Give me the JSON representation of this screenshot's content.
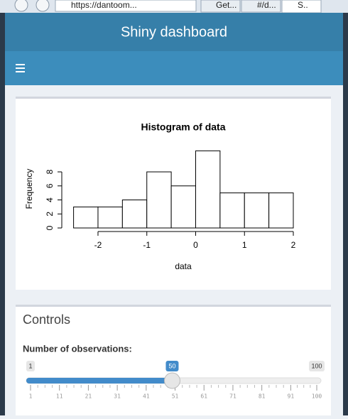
{
  "browser": {
    "address": "https://dantoom...",
    "tabs": [
      "Get...",
      "#/d...",
      "S.."
    ]
  },
  "header": {
    "title": "Shiny dashboard"
  },
  "plot": {
    "type": "histogram",
    "title": "Histogram of data",
    "xlabel": "data",
    "ylabel": "Frequency",
    "bins": [
      -2.5,
      -2,
      -1.5,
      -1,
      -0.5,
      0,
      0.5,
      1,
      1.5,
      2
    ],
    "counts": [
      3,
      3,
      4,
      8,
      6,
      11,
      5,
      5,
      5
    ],
    "xlim": [
      -2.5,
      2
    ],
    "ylim": [
      0,
      11
    ],
    "xticks": [
      -2,
      -1,
      0,
      1,
      2
    ],
    "yticks": [
      0,
      2,
      4,
      6,
      8
    ]
  },
  "controls": {
    "title": "Controls",
    "label": "Number of observations:",
    "slider": {
      "min": 1,
      "max": 100,
      "value": 50,
      "ticks": [
        1,
        11,
        21,
        31,
        41,
        51,
        61,
        71,
        81,
        91,
        100
      ]
    }
  }
}
